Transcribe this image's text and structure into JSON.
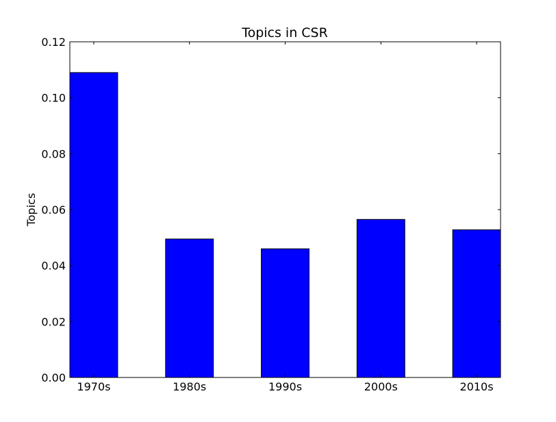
{
  "chart_data": {
    "type": "bar",
    "title": "Topics in CSR",
    "xlabel": "",
    "ylabel": "Topics",
    "categories": [
      "1970s",
      "1980s",
      "1990s",
      "2000s",
      "2010s"
    ],
    "values": [
      0.109,
      0.0495,
      0.046,
      0.0565,
      0.0528
    ],
    "ylim": [
      0,
      0.12
    ],
    "yticks": [
      0.0,
      0.02,
      0.04,
      0.06,
      0.08,
      0.1,
      0.12
    ],
    "ytick_labels": [
      "0.00",
      "0.02",
      "0.04",
      "0.06",
      "0.08",
      "0.10",
      "0.12"
    ],
    "grid": false,
    "bar_color": "#0000ff",
    "edge_color": "#000000"
  }
}
